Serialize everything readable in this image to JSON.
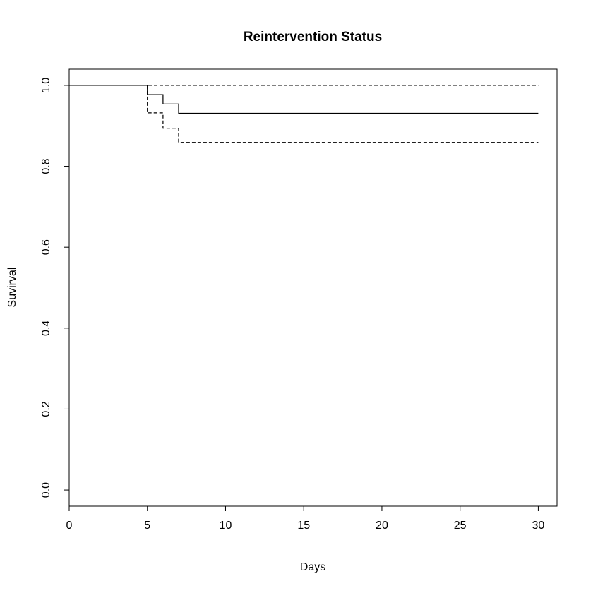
{
  "chart_data": {
    "type": "line",
    "title": "Reintervention Status",
    "xlabel": "Days",
    "ylabel": "Suvirval",
    "xlim": [
      0,
      31.2
    ],
    "ylim": [
      -0.04,
      1.04
    ],
    "x_ticks": [
      0,
      5,
      10,
      15,
      20,
      25,
      30
    ],
    "y_ticks": [
      0.0,
      0.2,
      0.4,
      0.6,
      0.8,
      1.0
    ],
    "x_tick_labels": [
      "0",
      "5",
      "10",
      "15",
      "20",
      "25",
      "30"
    ],
    "y_tick_labels": [
      "0.0",
      "0.2",
      "0.4",
      "0.6",
      "0.8",
      "1.0"
    ],
    "grid": false,
    "legend": "none",
    "series": [
      {
        "style": "solid",
        "color": "#000000",
        "points": [
          [
            0,
            1.0
          ],
          [
            5,
            1.0
          ],
          [
            5,
            0.977
          ],
          [
            6,
            0.977
          ],
          [
            6,
            0.954
          ],
          [
            7,
            0.954
          ],
          [
            7,
            0.931
          ],
          [
            30,
            0.931
          ]
        ]
      },
      {
        "style": "dashed",
        "color": "#000000",
        "points": [
          [
            0,
            1.0
          ],
          [
            30,
            1.0
          ]
        ]
      },
      {
        "style": "dashed",
        "color": "#000000",
        "points": [
          [
            5,
            1.0
          ],
          [
            5,
            0.932
          ],
          [
            6,
            0.932
          ],
          [
            6,
            0.894
          ],
          [
            7,
            0.894
          ],
          [
            7,
            0.859
          ],
          [
            30,
            0.859
          ]
        ]
      }
    ]
  }
}
